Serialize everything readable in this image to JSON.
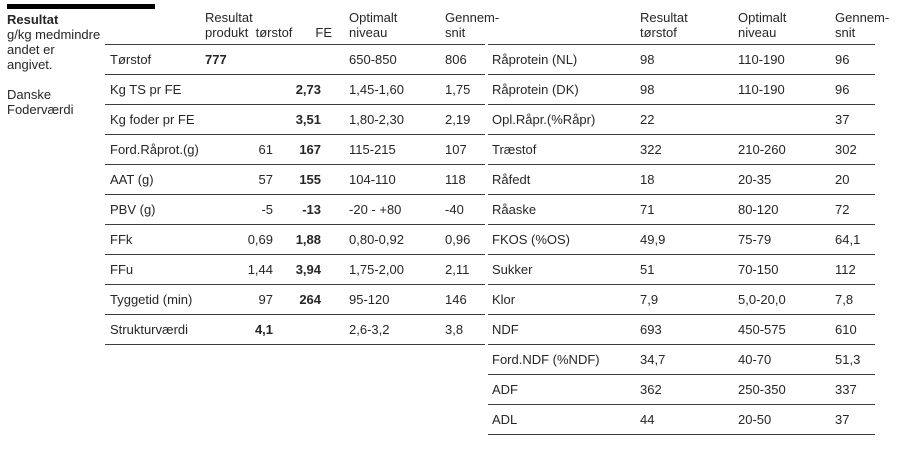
{
  "sidebar": {
    "title": "Resultat",
    "subtitle": "g/kg medmindre\nandet er\nangivet.",
    "footer": "Danske\nFoderværdi"
  },
  "left_table": {
    "headers": {
      "main": "Resultat\nprodukt  tørstof",
      "fe": "FE",
      "optimalt": "Optimalt\nniveau",
      "gennemsnit": "Gennem-\nsnit"
    },
    "rows": [
      {
        "label": "Tørstof",
        "produkt": "777",
        "torstof": "",
        "fe": "",
        "optimalt": "650-850",
        "gennemsnit": "806",
        "bold": [
          "produkt"
        ]
      },
      {
        "label": "Kg TS pr FE",
        "produkt": "",
        "torstof": "",
        "fe": "2,73",
        "optimalt": "1,45-1,60",
        "gennemsnit": "1,75",
        "bold": [
          "fe"
        ]
      },
      {
        "label": "Kg foder pr FE",
        "produkt": "",
        "torstof": "",
        "fe": "3,51",
        "optimalt": "1,80-2,30",
        "gennemsnit": "2,19",
        "bold": [
          "fe"
        ]
      },
      {
        "label": "Ford.Råprot.(g)",
        "produkt": "",
        "torstof": "61",
        "fe": "167",
        "optimalt": "115-215",
        "gennemsnit": "107",
        "bold": [
          "fe"
        ]
      },
      {
        "label": "AAT (g)",
        "produkt": "",
        "torstof": "57",
        "fe": "155",
        "optimalt": "104-110",
        "gennemsnit": "118",
        "bold": [
          "fe"
        ]
      },
      {
        "label": "PBV (g)",
        "produkt": "",
        "torstof": "-5",
        "fe": "-13",
        "optimalt": "-20 - +80",
        "gennemsnit": "-40",
        "bold": [
          "fe"
        ]
      },
      {
        "label": "FFk",
        "produkt": "",
        "torstof": "0,69",
        "fe": "1,88",
        "optimalt": "0,80-0,92",
        "gennemsnit": "0,96",
        "bold": [
          "fe"
        ]
      },
      {
        "label": "FFu",
        "produkt": "",
        "torstof": "1,44",
        "fe": "3,94",
        "optimalt": "1,75-2,00",
        "gennemsnit": "2,11",
        "bold": [
          "fe"
        ]
      },
      {
        "label": "Tyggetid (min)",
        "produkt": "",
        "torstof": "97",
        "fe": "264",
        "optimalt": "95-120",
        "gennemsnit": "146",
        "bold": [
          "fe"
        ]
      },
      {
        "label": "Strukturværdi",
        "produkt": "",
        "torstof": "4,1",
        "fe": "",
        "optimalt": "2,6-3,2",
        "gennemsnit": "3,8",
        "bold": [
          "torstof"
        ]
      }
    ]
  },
  "right_table": {
    "headers": {
      "torstof": "Resultat\ntørstof",
      "optimalt": "Optimalt\nniveau",
      "gennemsnit": "Gennem-\nsnit"
    },
    "rows": [
      {
        "label": "Råprotein (NL)",
        "torstof": "98",
        "optimalt": "110-190",
        "gennemsnit": "96"
      },
      {
        "label": "Råprotein (DK)",
        "torstof": "98",
        "optimalt": "110-190",
        "gennemsnit": "96"
      },
      {
        "label": "Opl.Råpr.(%Råpr)",
        "torstof": "22",
        "optimalt": "",
        "gennemsnit": "37"
      },
      {
        "label": "Træstof",
        "torstof": "322",
        "optimalt": "210-260",
        "gennemsnit": "302"
      },
      {
        "label": "Råfedt",
        "torstof": "18",
        "optimalt": "20-35",
        "gennemsnit": "20"
      },
      {
        "label": "Råaske",
        "torstof": "71",
        "optimalt": "80-120",
        "gennemsnit": "72"
      },
      {
        "label": "FKOS (%OS)",
        "torstof": "49,9",
        "optimalt": "75-79",
        "gennemsnit": "64,1"
      },
      {
        "label": "Sukker",
        "torstof": "51",
        "optimalt": "70-150",
        "gennemsnit": "112"
      },
      {
        "label": "Klor",
        "torstof": "7,9",
        "optimalt": "5,0-20,0",
        "gennemsnit": "7,8"
      },
      {
        "label": "NDF",
        "torstof": "693",
        "optimalt": "450-575",
        "gennemsnit": "610"
      },
      {
        "label": "Ford.NDF (%NDF)",
        "torstof": "34,7",
        "optimalt": "40-70",
        "gennemsnit": "51,3"
      },
      {
        "label": "ADF",
        "torstof": "362",
        "optimalt": "250-350",
        "gennemsnit": "337"
      },
      {
        "label": "ADL",
        "torstof": "44",
        "optimalt": "20-50",
        "gennemsnit": "37"
      }
    ]
  }
}
